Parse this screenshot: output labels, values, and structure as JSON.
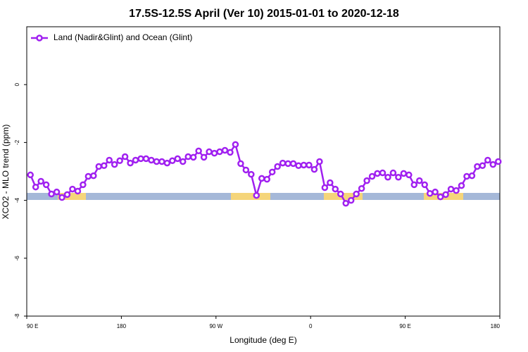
{
  "chart_data": {
    "type": "line",
    "title": "17.5S-12.5S April (Ver 10)   2015-01-01 to 2020-12-18",
    "xlabel": "Longitude (deg E)",
    "ylabel": "XCO2 - MLO trend (ppm)",
    "xlim": [
      90,
      540
    ],
    "xticks": [
      {
        "value": 90,
        "label": "90 E"
      },
      {
        "value": 180,
        "label": "180"
      },
      {
        "value": 270,
        "label": "90 W"
      },
      {
        "value": 360,
        "label": "0"
      },
      {
        "value": 450,
        "label": "90 E"
      },
      {
        "value": 540,
        "label": "180"
      }
    ],
    "ylim": [
      -8,
      2
    ],
    "yticks": [
      0,
      -2,
      -4,
      -6,
      -8
    ],
    "legend": "upper left",
    "x": [
      93.5,
      98.5,
      103.5,
      108.5,
      113.5,
      118.5,
      123.5,
      128.5,
      133.5,
      138.5,
      143.5,
      148.5,
      153.5,
      158.5,
      163.5,
      168.5,
      173.5,
      178.5,
      183.5,
      188.5,
      193.5,
      198.5,
      203.5,
      208.5,
      213.5,
      218.5,
      223.5,
      228.5,
      233.5,
      238.5,
      243.5,
      248.5,
      253.5,
      258.5,
      263.5,
      268.5,
      273.5,
      278.5,
      283.5,
      288.5,
      293.5,
      298.5,
      303.5,
      308.5,
      313.5,
      318.5,
      323.5,
      328.5,
      333.5,
      338.5,
      343.5,
      348.5,
      353.5,
      358.5,
      363.5,
      368.5,
      373.5,
      378.5,
      383.5,
      388.5,
      393.5,
      398.5,
      403.5,
      408.5,
      413.5,
      418.5,
      423.5,
      428.5,
      433.5,
      438.5,
      443.5,
      448.5,
      453.5,
      458.5,
      463.5,
      468.5,
      473.5,
      478.5,
      483.5,
      488.5,
      493.5,
      498.5,
      503.5,
      508.5,
      513.5,
      518.5,
      523.5,
      528.5,
      533.5,
      538.5
    ],
    "series": [
      {
        "name": "Land (Nadir&Glint) and Ocean (Glint)",
        "color": "#a020f0",
        "values": [
          -3.12,
          -3.54,
          -3.34,
          -3.46,
          -3.78,
          -3.71,
          -3.9,
          -3.8,
          -3.61,
          -3.68,
          -3.46,
          -3.17,
          -3.15,
          -2.83,
          -2.8,
          -2.61,
          -2.76,
          -2.63,
          -2.49,
          -2.71,
          -2.61,
          -2.56,
          -2.56,
          -2.61,
          -2.66,
          -2.66,
          -2.71,
          -2.63,
          -2.56,
          -2.66,
          -2.49,
          -2.51,
          -2.29,
          -2.51,
          -2.32,
          -2.37,
          -2.32,
          -2.27,
          -2.34,
          -2.07,
          -2.73,
          -2.95,
          -3.1,
          -3.83,
          -3.24,
          -3.27,
          -3.02,
          -2.83,
          -2.71,
          -2.73,
          -2.73,
          -2.8,
          -2.78,
          -2.78,
          -2.93,
          -2.66,
          -3.56,
          -3.39,
          -3.61,
          -3.78,
          -4.1,
          -4.0,
          -3.78,
          -3.59,
          -3.32,
          -3.17,
          -3.07,
          -3.05,
          -3.2,
          -3.05,
          -3.2,
          -3.07,
          -3.12,
          -3.46,
          -3.32,
          -3.46,
          -3.76,
          -3.71,
          -3.88,
          -3.8,
          -3.61,
          -3.66,
          -3.49,
          -3.17,
          -3.15,
          -2.83,
          -2.8,
          -2.61,
          -2.76,
          -2.66
        ]
      }
    ]
  }
}
